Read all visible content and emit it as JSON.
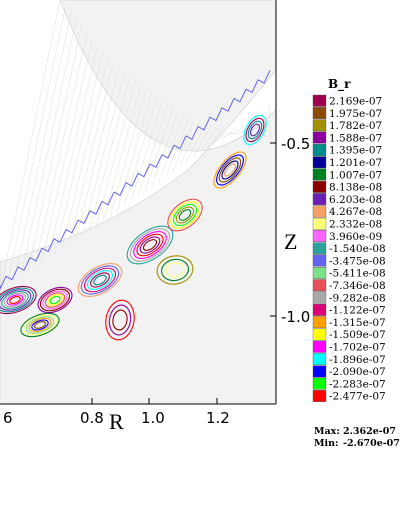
{
  "chart_data": {
    "type": "contour",
    "title": "",
    "xlabel": "R",
    "ylabel": "Z",
    "xticks": [
      "6",
      "0.8",
      "1.0",
      "1.2"
    ],
    "yticks": [
      "-0.5",
      "-1.0"
    ],
    "xlim": [
      0.58,
      1.36
    ],
    "ylim": [
      -1.22,
      -0.28
    ],
    "legend": {
      "title": "B_r",
      "placement": "right",
      "levels": [
        {
          "label": "2.169e-07",
          "color": "#a00050"
        },
        {
          "label": "1.975e-07",
          "color": "#8a4a00"
        },
        {
          "label": "1.782e-07",
          "color": "#a39000"
        },
        {
          "label": "1.588e-07",
          "color": "#8a00a0"
        },
        {
          "label": "1.395e-07",
          "color": "#008c8c"
        },
        {
          "label": "1.201e-07",
          "color": "#000096"
        },
        {
          "label": "1.007e-07",
          "color": "#00801e"
        },
        {
          "label": "8.138e-08",
          "color": "#8c0000"
        },
        {
          "label": "6.203e-08",
          "color": "#6b1fb4"
        },
        {
          "label": "4.267e-08",
          "color": "#f5a060"
        },
        {
          "label": "2.332e-08",
          "color": "#ffff78"
        },
        {
          "label": "3.960e-09",
          "color": "#ff64ff"
        },
        {
          "label": "-1.540e-08",
          "color": "#2aa39c"
        },
        {
          "label": "-3.475e-08",
          "color": "#6464f0"
        },
        {
          "label": "-5.411e-08",
          "color": "#7fe08a"
        },
        {
          "label": "-7.346e-08",
          "color": "#e6505a"
        },
        {
          "label": "-9.282e-08",
          "color": "#a8a8a8"
        },
        {
          "label": "-1.122e-07",
          "color": "#dc0078"
        },
        {
          "label": "-1.315e-07",
          "color": "#ffa000"
        },
        {
          "label": "-1.509e-07",
          "color": "#ffff00"
        },
        {
          "label": "-1.702e-07",
          "color": "#ff00ff"
        },
        {
          "label": "-1.896e-07",
          "color": "#00ffff"
        },
        {
          "label": "-2.090e-07",
          "color": "#0000ff"
        },
        {
          "label": "-2.283e-07",
          "color": "#00ff00"
        },
        {
          "label": "-2.477e-07",
          "color": "#ff0000"
        }
      ]
    },
    "max_label": "Max:",
    "max_value": "2.362e-07",
    "min_label": "Min:",
    "min_value": "-2.670e-07"
  }
}
